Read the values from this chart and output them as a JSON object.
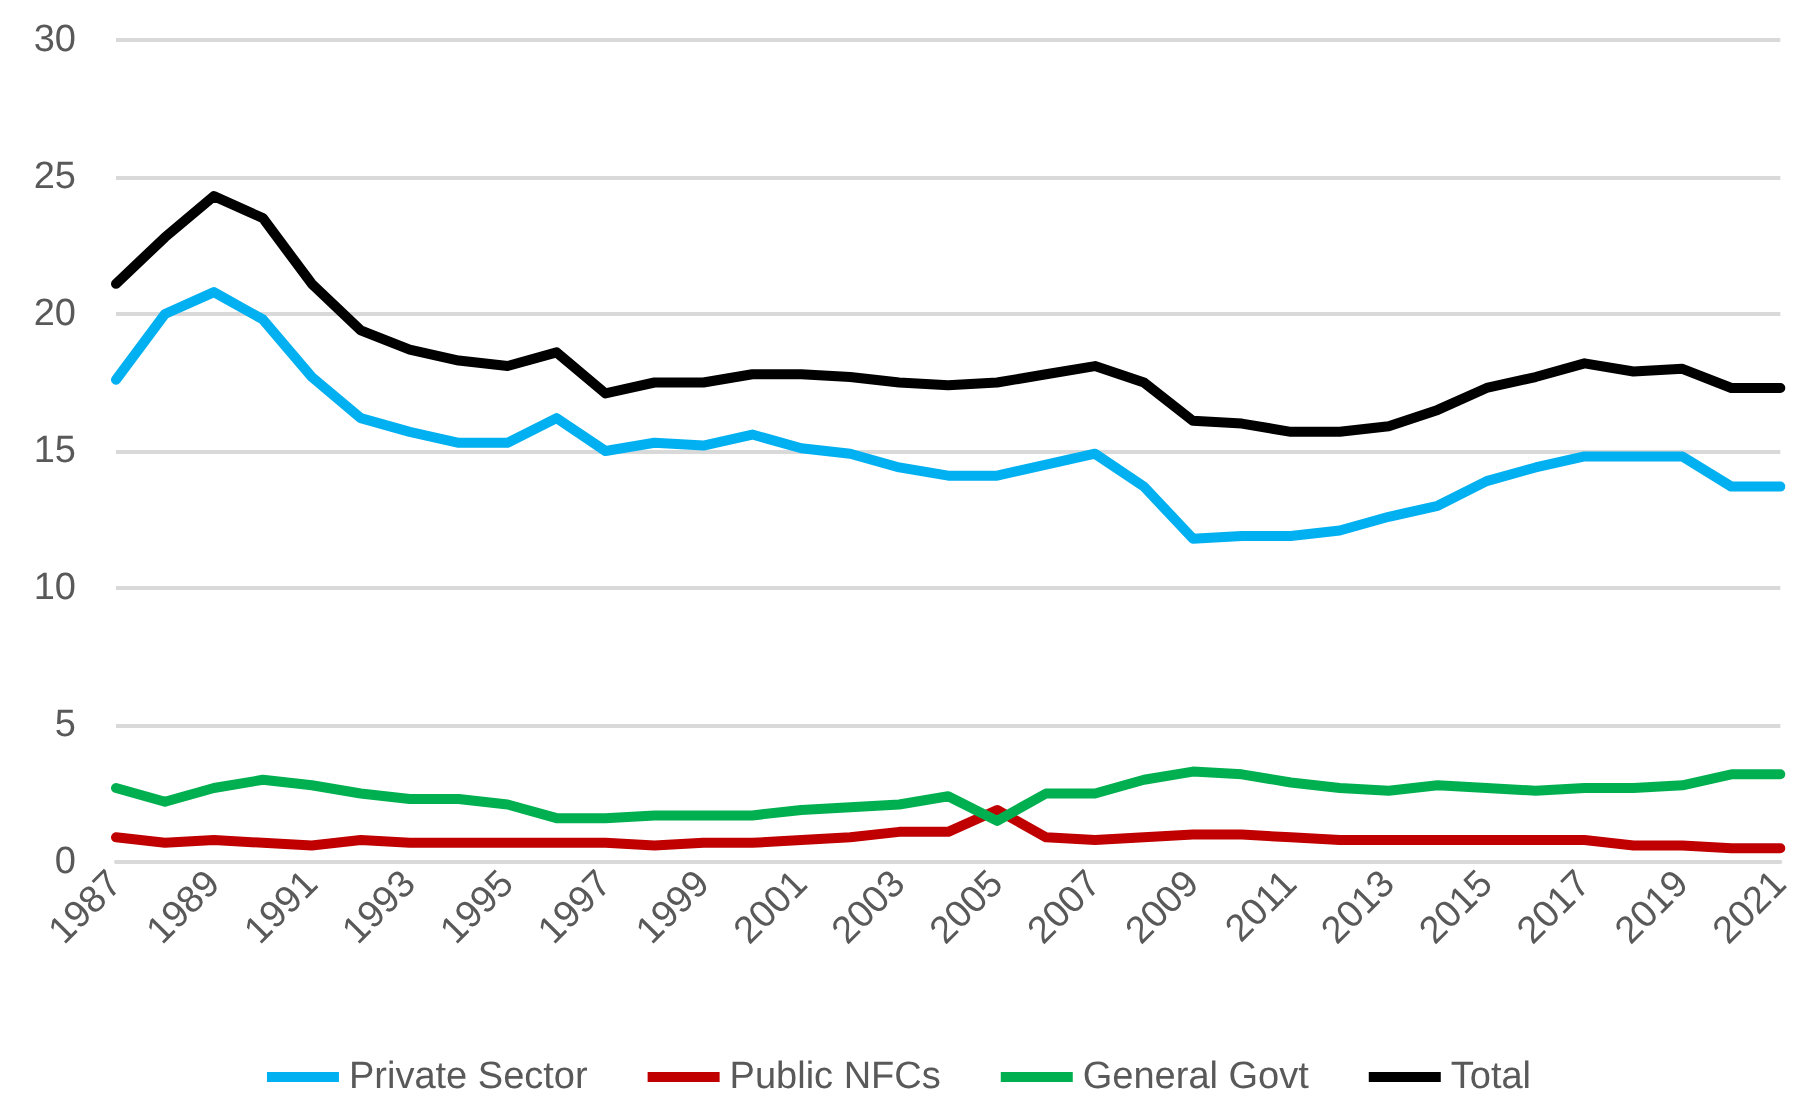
{
  "chart_data": {
    "type": "line",
    "categories": [
      "1987",
      null,
      "1989",
      null,
      "1991",
      null,
      "1993",
      null,
      "1995",
      null,
      "1997",
      null,
      "1999",
      null,
      "2001",
      null,
      "2003",
      null,
      "2005",
      null,
      "2007",
      null,
      "2009",
      null,
      "2011",
      null,
      "2013",
      null,
      "2015",
      null,
      "2017",
      null,
      "2019",
      null,
      "2021"
    ],
    "series": [
      {
        "name": "Private Sector",
        "color": "#00b0f0",
        "values": [
          17.6,
          20.0,
          20.8,
          19.8,
          17.7,
          16.2,
          15.7,
          15.3,
          15.3,
          16.2,
          15.0,
          15.3,
          15.2,
          15.6,
          15.1,
          14.9,
          14.4,
          14.1,
          14.1,
          14.5,
          14.9,
          13.7,
          11.8,
          11.9,
          11.9,
          12.1,
          12.6,
          13.0,
          13.9,
          14.4,
          14.8,
          14.8,
          14.8,
          13.7,
          13.7
        ]
      },
      {
        "name": "Public NFCs",
        "color": "#c00000",
        "values": [
          0.9,
          0.7,
          0.8,
          0.7,
          0.6,
          0.8,
          0.7,
          0.7,
          0.7,
          0.7,
          0.7,
          0.6,
          0.7,
          0.7,
          0.8,
          0.9,
          1.1,
          1.1,
          1.9,
          0.9,
          0.8,
          0.9,
          1.0,
          1.0,
          0.9,
          0.8,
          0.8,
          0.8,
          0.8,
          0.8,
          0.8,
          0.6,
          0.6,
          0.5,
          0.5
        ]
      },
      {
        "name": "General Govt",
        "color": "#00b050",
        "values": [
          2.7,
          2.2,
          2.7,
          3.0,
          2.8,
          2.5,
          2.3,
          2.3,
          2.1,
          1.6,
          1.6,
          1.7,
          1.7,
          1.7,
          1.9,
          2.0,
          2.1,
          2.4,
          1.5,
          2.5,
          2.5,
          3.0,
          3.3,
          3.2,
          2.9,
          2.7,
          2.6,
          2.8,
          2.7,
          2.6,
          2.7,
          2.7,
          2.8,
          3.2,
          3.2
        ]
      },
      {
        "name": "Total",
        "color": "#000000",
        "values": [
          21.1,
          22.8,
          24.3,
          23.5,
          21.1,
          19.4,
          18.7,
          18.3,
          18.1,
          18.6,
          17.1,
          17.5,
          17.5,
          17.8,
          17.8,
          17.7,
          17.5,
          17.4,
          17.5,
          17.8,
          18.1,
          17.5,
          16.1,
          16.0,
          15.7,
          15.7,
          15.9,
          16.5,
          17.3,
          17.7,
          18.2,
          17.9,
          18.0,
          17.3,
          17.3
        ]
      }
    ],
    "ylim": [
      0,
      30
    ],
    "yticks": [
      0,
      5,
      10,
      15,
      20,
      25,
      30
    ],
    "grid": "y",
    "legend": "bottom",
    "marker": "none",
    "line_style": "solid"
  }
}
